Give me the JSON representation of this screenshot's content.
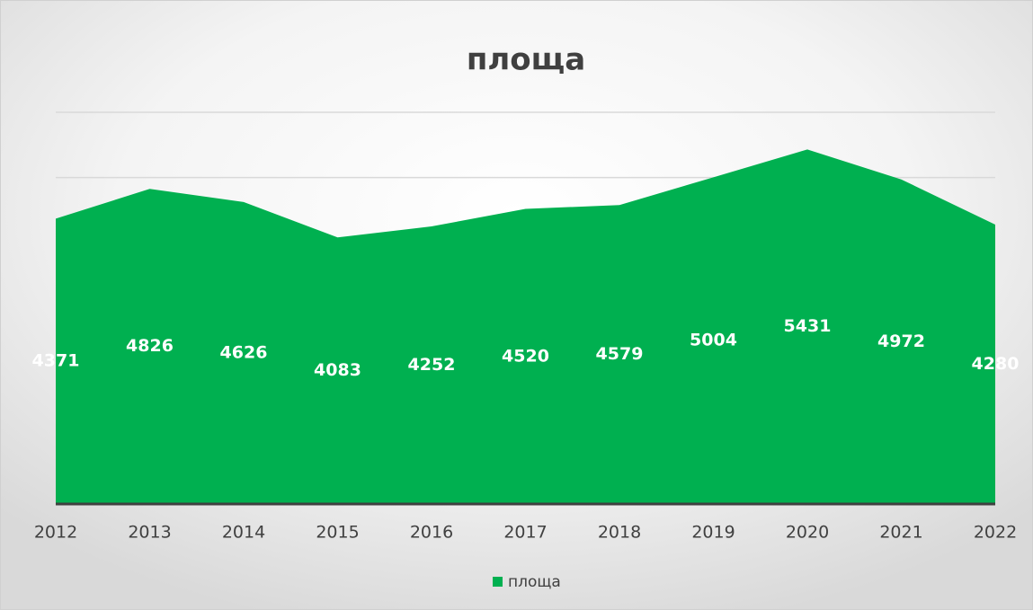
{
  "chart_data": {
    "type": "area",
    "title": "площа",
    "categories": [
      "2012",
      "2013",
      "2014",
      "2015",
      "2016",
      "2017",
      "2018",
      "2019",
      "2020",
      "2021",
      "2022"
    ],
    "series": [
      {
        "name": "площа",
        "color": "#00b050",
        "values": [
          4371,
          4826,
          4626,
          4083,
          4252,
          4520,
          4579,
          5004,
          5431,
          4972,
          4280
        ]
      }
    ],
    "ylim": [
      0,
      6000
    ],
    "yticks": [
      0,
      1000,
      2000,
      3000,
      4000,
      5000,
      6000
    ],
    "grid": true,
    "legend": "bottom"
  }
}
